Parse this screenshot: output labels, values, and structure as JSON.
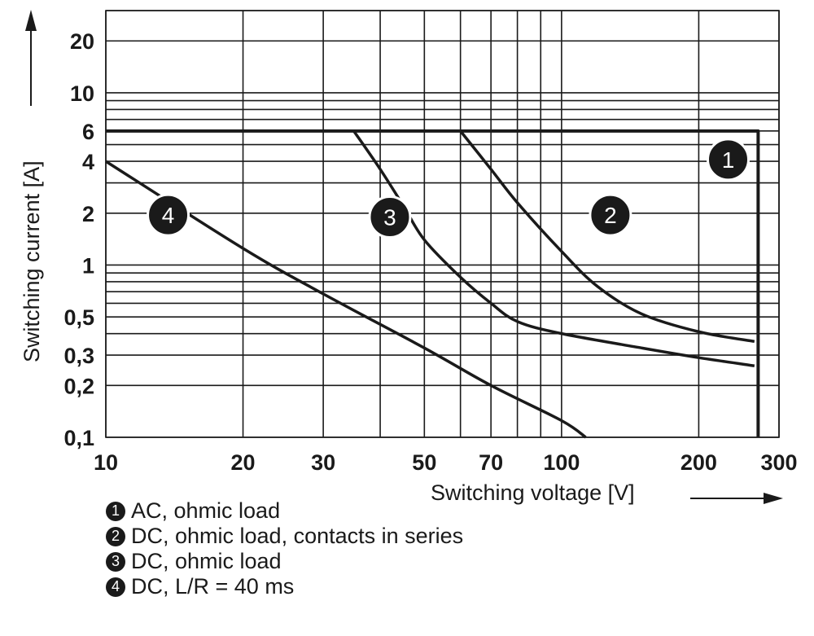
{
  "chart_data": {
    "type": "line",
    "xlabel": "Switching voltage [V]",
    "ylabel": "Switching current [A]",
    "xscale": "log",
    "yscale": "log",
    "xlim": [
      10,
      300
    ],
    "ylim": [
      0.1,
      30
    ],
    "grid": true,
    "x_ticks": [
      10,
      20,
      30,
      50,
      70,
      100,
      200,
      300
    ],
    "x_tick_labels": [
      "10",
      "20",
      "30",
      "50",
      "70",
      "100",
      "200",
      "300"
    ],
    "y_ticks": [
      20,
      10,
      6,
      4,
      2,
      1,
      0.5,
      0.3,
      0.2,
      0.1
    ],
    "y_tick_labels": [
      "20",
      "10",
      "6",
      "4",
      "2",
      "1",
      "0,5",
      "0,3",
      "0,2",
      "0,1"
    ],
    "x_grid": [
      10,
      20,
      30,
      40,
      50,
      60,
      70,
      80,
      90,
      100,
      200,
      300
    ],
    "y_grid": [
      0.1,
      0.2,
      0.3,
      0.4,
      0.5,
      0.6,
      0.7,
      0.8,
      0.9,
      1,
      2,
      3,
      4,
      5,
      6,
      7,
      8,
      9,
      10,
      20,
      30
    ],
    "series": [
      {
        "name": "1",
        "label": "AC, ohmic load",
        "x": [
          10,
          270,
          270
        ],
        "y": [
          6,
          6,
          0.1
        ],
        "marker_at": [
          232,
          4.1
        ]
      },
      {
        "name": "2",
        "label": "DC, ohmic load, contacts in series",
        "x": [
          60,
          70,
          80,
          100,
          120,
          150,
          200,
          265
        ],
        "y": [
          6,
          3.6,
          2.3,
          1.2,
          0.75,
          0.52,
          0.41,
          0.36
        ],
        "marker_at": [
          128,
          1.95
        ]
      },
      {
        "name": "3",
        "label": "DC, ohmic load",
        "x": [
          35,
          40,
          45,
          50,
          60,
          70,
          80,
          100,
          150,
          200,
          265
        ],
        "y": [
          6,
          3.6,
          2.2,
          1.4,
          0.85,
          0.6,
          0.47,
          0.4,
          0.33,
          0.29,
          0.26
        ],
        "marker_at": [
          42,
          1.9
        ]
      },
      {
        "name": "4",
        "label": "DC, L/R = 40 ms",
        "x": [
          10,
          20,
          30,
          50,
          70,
          100,
          113
        ],
        "y": [
          4,
          1.25,
          0.68,
          0.33,
          0.2,
          0.125,
          0.1
        ],
        "marker_at": [
          13.7,
          1.95
        ]
      }
    ],
    "line_color": "#1a1a1a"
  }
}
